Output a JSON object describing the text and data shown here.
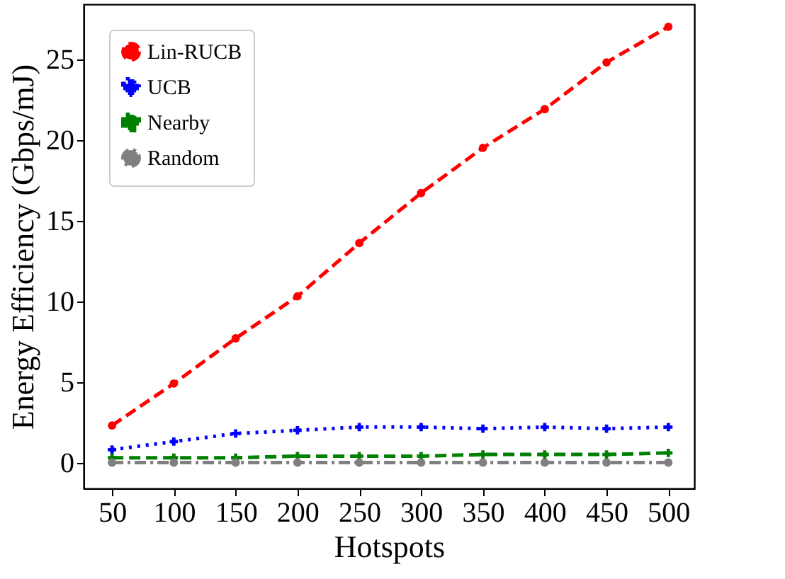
{
  "chart_data": {
    "type": "line",
    "xlabel": "Hotspots",
    "ylabel": "Energy Efficiency (Gbps/mJ)",
    "x": [
      50,
      100,
      150,
      200,
      250,
      300,
      350,
      400,
      450,
      500
    ],
    "xlim": [
      27,
      521
    ],
    "xticks": [
      50,
      100,
      150,
      200,
      250,
      300,
      350,
      400,
      450,
      500
    ],
    "ylim": [
      -1.6,
      28.4
    ],
    "yticks": [
      0,
      5,
      10,
      15,
      20,
      25
    ],
    "grid": false,
    "legend": "top left",
    "series": [
      {
        "name": "Lin-RUCB",
        "color": "#ff0000",
        "marker": "circle",
        "line_style": "dashed",
        "values": [
          2.3,
          4.9,
          7.7,
          10.3,
          13.6,
          16.7,
          19.5,
          21.9,
          24.8,
          27.0
        ]
      },
      {
        "name": "UCB",
        "color": "#0000ff",
        "marker": "cross",
        "line_style": "dotted",
        "values": [
          0.8,
          1.3,
          1.8,
          2.0,
          2.2,
          2.2,
          2.1,
          2.2,
          2.1,
          2.2
        ]
      },
      {
        "name": "Nearby",
        "color": "#008000",
        "marker": "cross",
        "line_style": "dashed",
        "values": [
          0.3,
          0.3,
          0.3,
          0.4,
          0.4,
          0.4,
          0.5,
          0.5,
          0.5,
          0.6
        ]
      },
      {
        "name": "Random",
        "color": "#808080",
        "marker": "circle",
        "line_style": "dashdot",
        "values": [
          0,
          0,
          0,
          0,
          0,
          0,
          0,
          0,
          0,
          0
        ]
      }
    ]
  }
}
